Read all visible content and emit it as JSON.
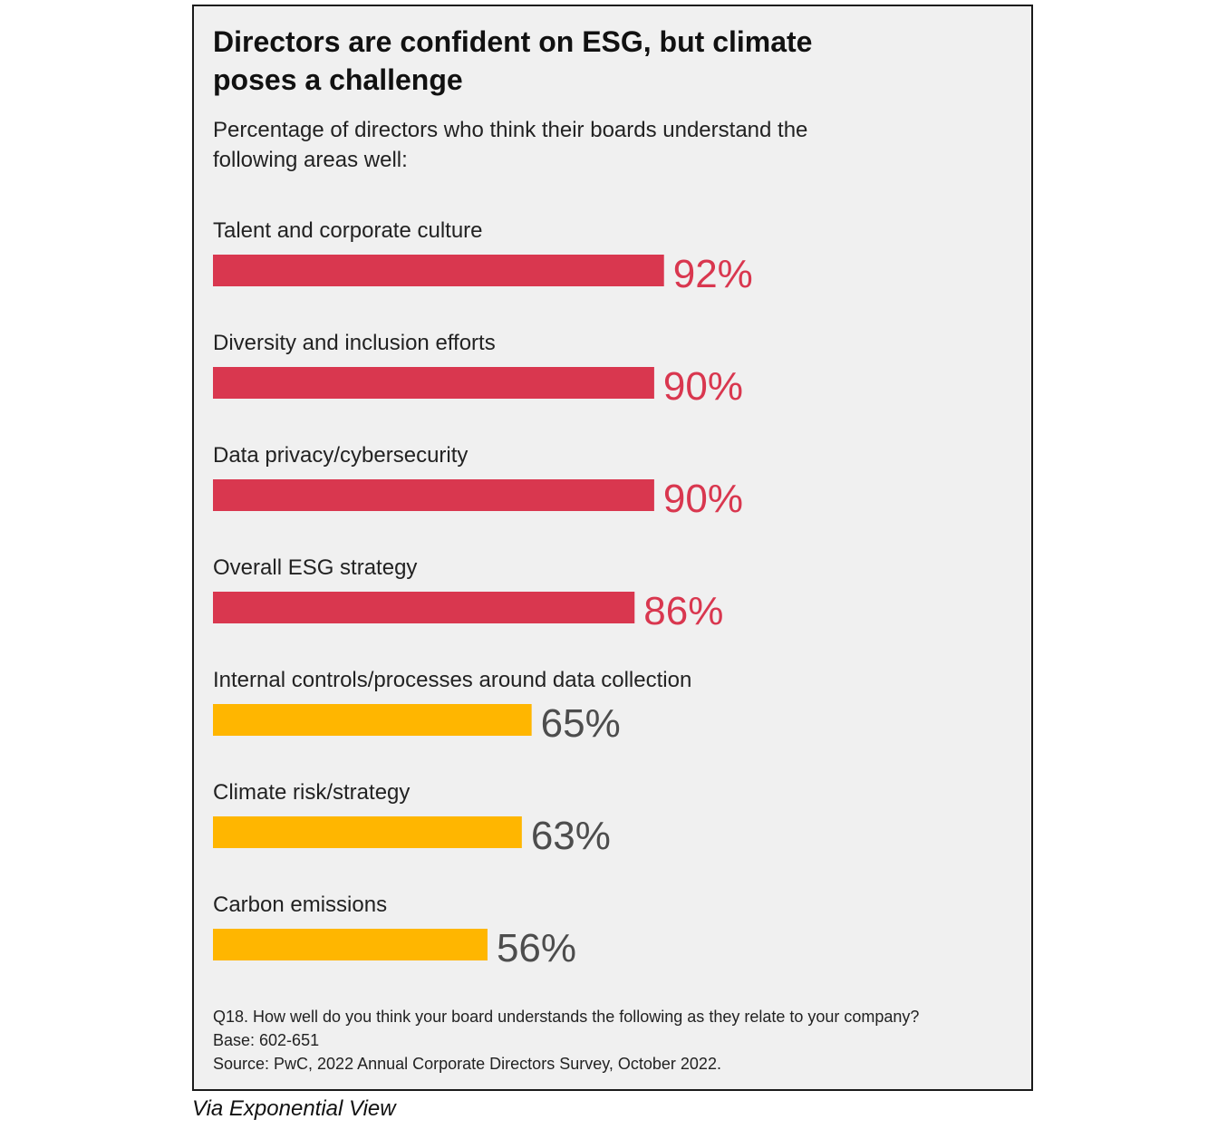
{
  "chart_data": {
    "type": "bar",
    "orientation": "horizontal",
    "title": "Directors are confident on ESG, but climate poses a challenge",
    "subtitle": "Percentage of directors who think their boards understand the following areas well:",
    "categories": [
      "Talent and corporate culture",
      "Diversity and inclusion efforts",
      "Data privacy/cybersecurity",
      "Overall ESG strategy",
      "Internal controls/processes around data collection",
      "Climate risk/strategy",
      "Carbon emissions"
    ],
    "values": [
      92,
      90,
      90,
      86,
      65,
      63,
      56
    ],
    "value_labels": [
      "92%",
      "90%",
      "90%",
      "86%",
      "65%",
      "63%",
      "56%"
    ],
    "bar_colors": [
      "#d9374f",
      "#d9374f",
      "#d9374f",
      "#d9374f",
      "#ffb600",
      "#ffb600",
      "#ffb600"
    ],
    "label_colors": [
      "#d9374f",
      "#d9374f",
      "#d9374f",
      "#d9374f",
      "#4d4d4d",
      "#4d4d4d",
      "#4d4d4d"
    ],
    "xlim": [
      0,
      100
    ],
    "grid": false,
    "legend": "none"
  },
  "footnote": {
    "question": "Q18. How well do you think your board understands the following as they relate to your company?",
    "base": "Base: 602-651",
    "source": "Source: PwC, 2022 Annual Corporate Directors Survey, October 2022."
  },
  "credit": "Via Exponential View"
}
